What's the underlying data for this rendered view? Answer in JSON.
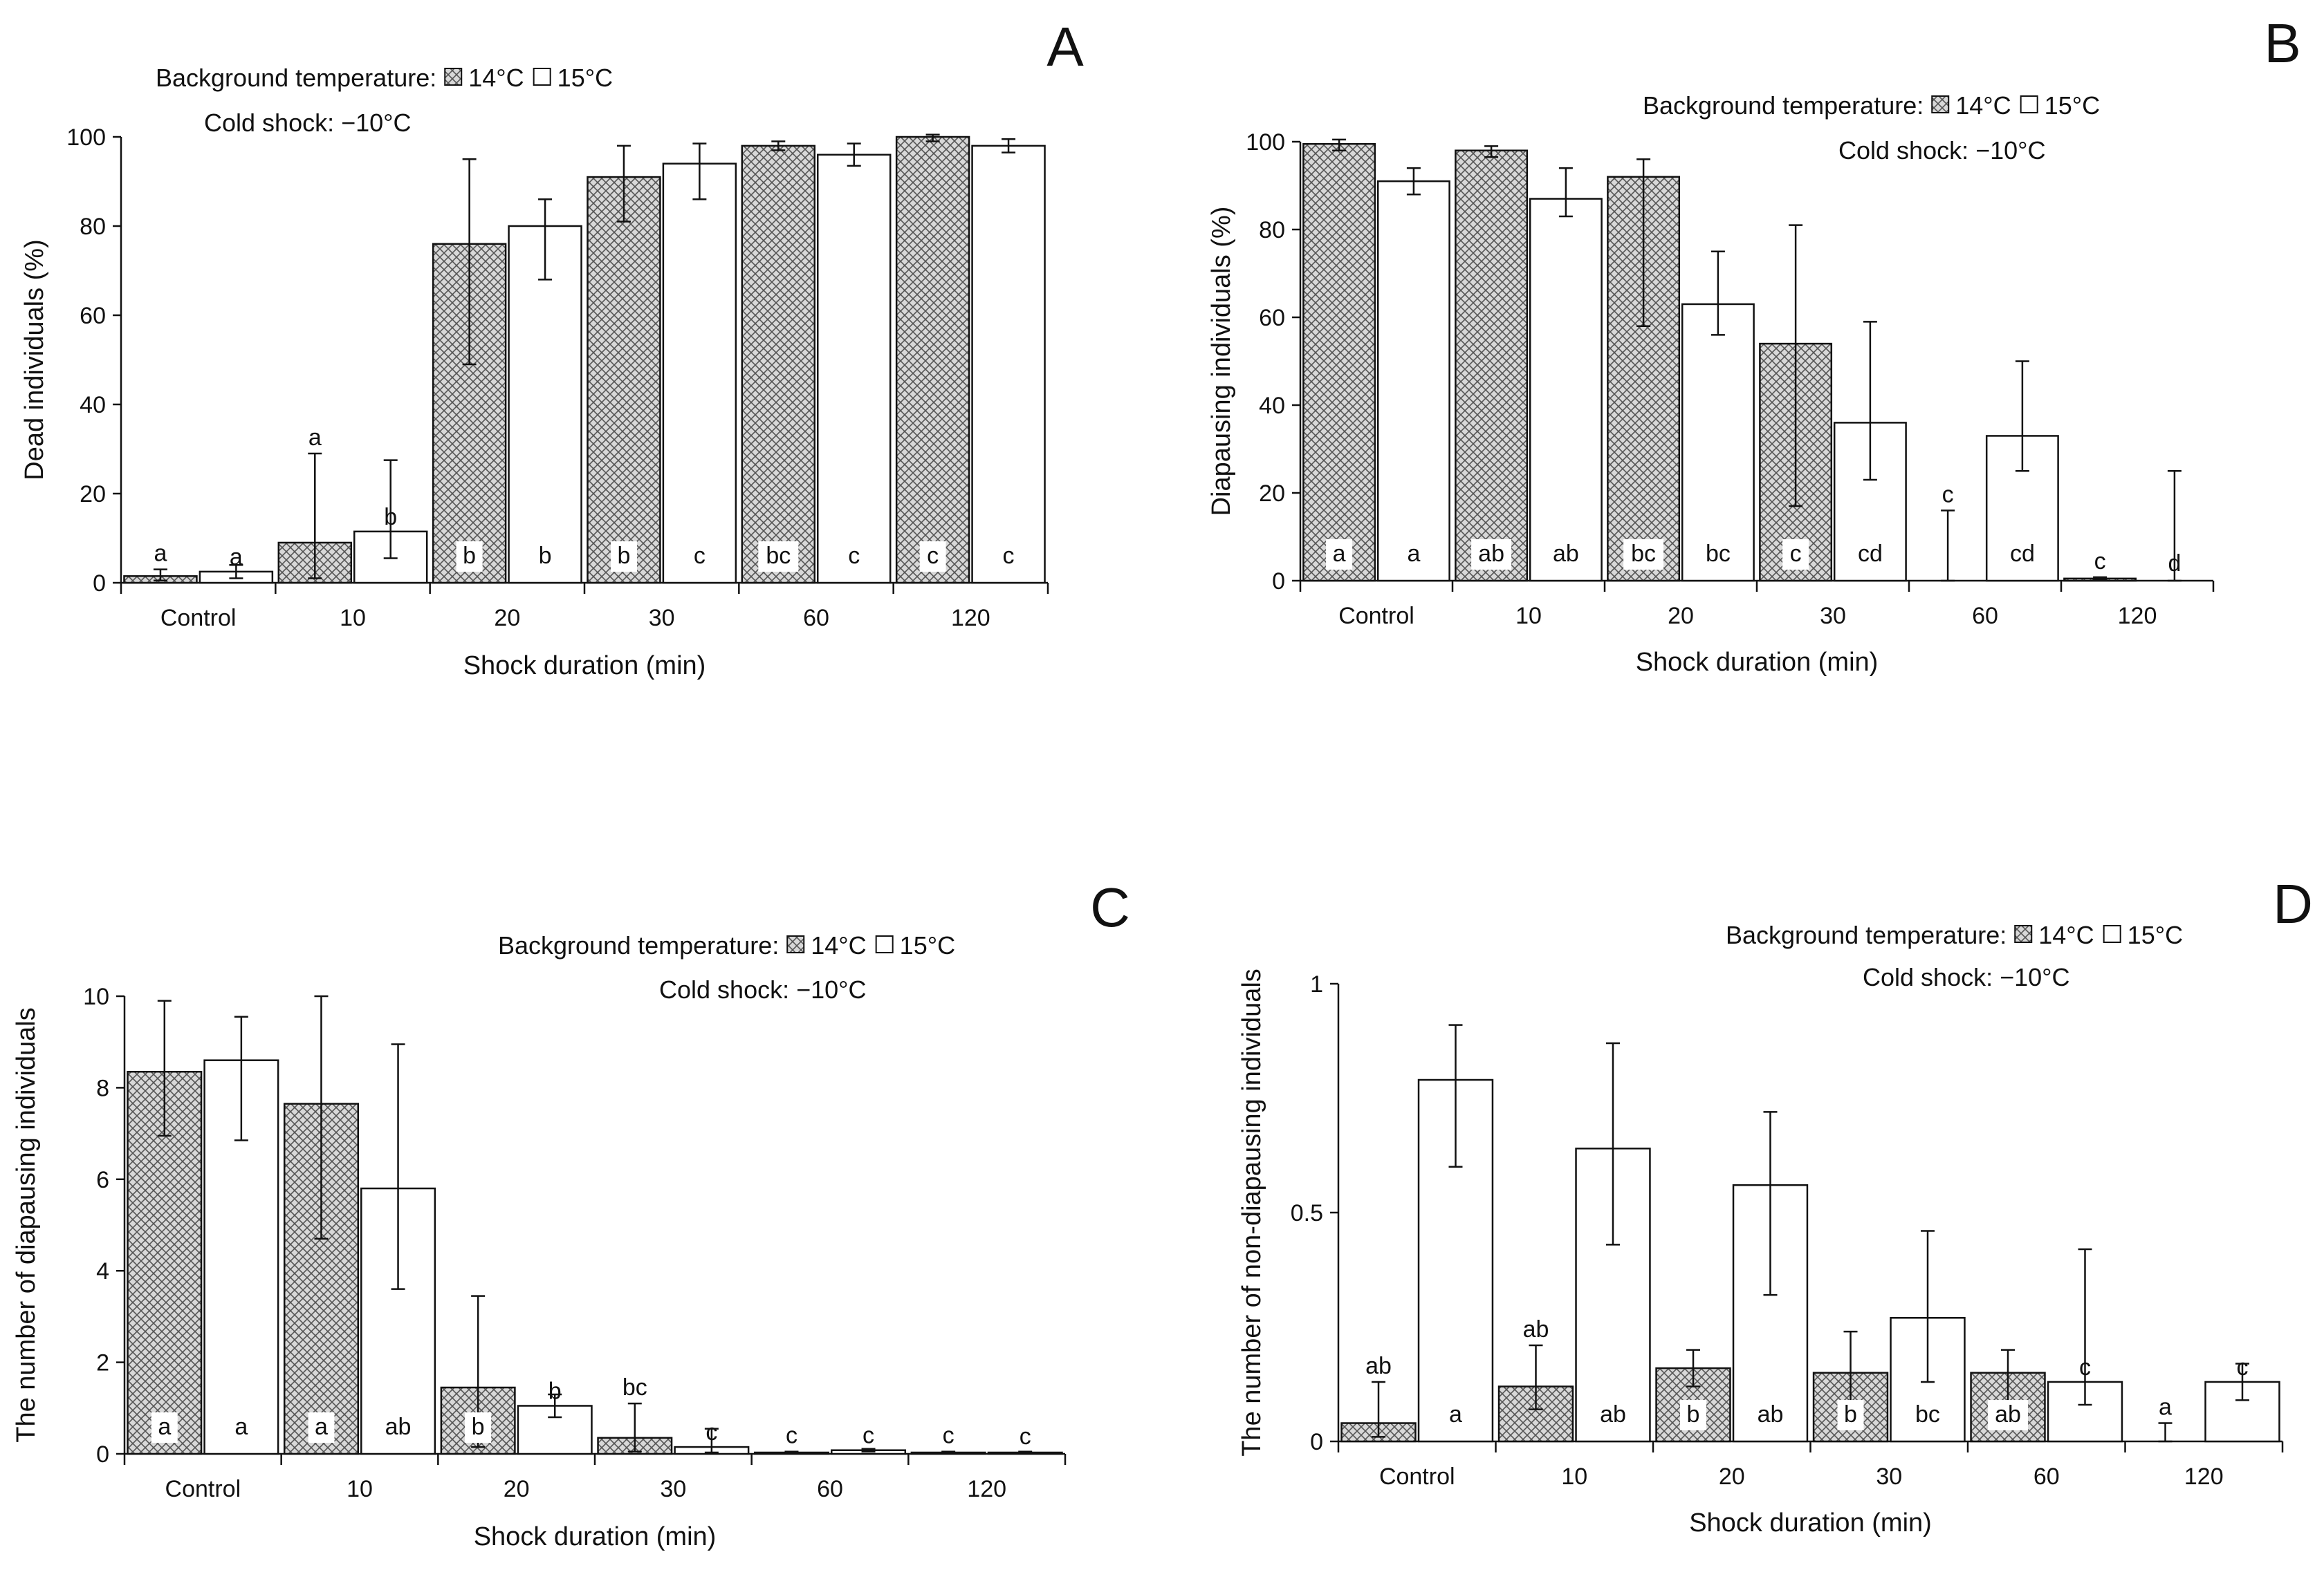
{
  "legend": {
    "background_label": "Background  temperature:",
    "series_14_label": "14°C",
    "series_15_label": "15°C",
    "cold_shock": "Cold shock: −10°C"
  },
  "colors": {
    "bar_edge": "#111111",
    "hatch": "#555555",
    "hatch_bg": "#d8d8d8"
  },
  "chart_data": [
    {
      "panel": "A",
      "type": "bar",
      "categories": [
        "Control",
        "10",
        "20",
        "30",
        "60",
        "120"
      ],
      "xlabel": "Shock duration (min)",
      "ylabel": "Dead  individuals  (%)",
      "ylim": [
        0,
        100
      ],
      "yticks": [
        "0",
        "20",
        "40",
        "60",
        "80",
        "100"
      ],
      "series": [
        {
          "name": "14°C",
          "values": [
            1.5,
            9,
            76,
            91,
            98,
            100
          ],
          "err_low": [
            1,
            8,
            27,
            10,
            1,
            1
          ],
          "err_high": [
            1.5,
            20,
            19,
            7,
            1,
            0.5
          ],
          "letters": [
            "a",
            "a",
            "b",
            "b",
            "bc",
            "c"
          ]
        },
        {
          "name": "15°C",
          "values": [
            2.5,
            11.5,
            80,
            94,
            96,
            98
          ],
          "err_low": [
            1.5,
            6,
            12,
            8,
            2.5,
            1.5
          ],
          "err_high": [
            1.5,
            16,
            6,
            4.5,
            2.5,
            1.5
          ],
          "letters": [
            "a",
            "b",
            "b",
            "c",
            "c",
            "c"
          ]
        }
      ]
    },
    {
      "panel": "B",
      "type": "bar",
      "categories": [
        "Control",
        "10",
        "20",
        "30",
        "60",
        "120"
      ],
      "xlabel": "Shock duration (min)",
      "ylabel": "Diapausing  individuals  (%)",
      "ylim": [
        0,
        100
      ],
      "yticks": [
        "0",
        "20",
        "40",
        "60",
        "80",
        "100"
      ],
      "series": [
        {
          "name": "14°C",
          "values": [
            99.5,
            98,
            92,
            54,
            0,
            0.5
          ],
          "err_low": [
            1.5,
            1.5,
            34,
            37,
            0,
            0.3
          ],
          "err_high": [
            1,
            1,
            4,
            27,
            16,
            0.3
          ],
          "letters": [
            "a",
            "ab",
            "bc",
            "c",
            "c",
            "c"
          ]
        },
        {
          "name": "15°C",
          "values": [
            91,
            87,
            63,
            36,
            33,
            0
          ],
          "err_low": [
            3,
            4,
            7,
            13,
            8,
            0
          ],
          "err_high": [
            3,
            7,
            12,
            23,
            17,
            25
          ],
          "letters": [
            "a",
            "ab",
            "bc",
            "cd",
            "cd",
            "d"
          ]
        }
      ]
    },
    {
      "panel": "C",
      "type": "bar",
      "categories": [
        "Control",
        "10",
        "20",
        "30",
        "60",
        "120"
      ],
      "xlabel": "Shock duration (min)",
      "ylabel": "The number of diapausing individuals",
      "ylim": [
        0,
        10
      ],
      "yticks": [
        "0",
        "2",
        "4",
        "6",
        "8",
        "10"
      ],
      "series": [
        {
          "name": "14°C",
          "values": [
            8.35,
            7.65,
            1.45,
            0.35,
            0.03,
            0.03
          ],
          "err_low": [
            1.4,
            2.95,
            1.3,
            0.3,
            0.02,
            0.02
          ],
          "err_high": [
            1.55,
            2.35,
            2.0,
            0.75,
            0.02,
            0.02
          ],
          "letters": [
            "a",
            "a",
            "b",
            "bc",
            "c",
            "c"
          ]
        },
        {
          "name": "15°C",
          "values": [
            8.6,
            5.8,
            1.05,
            0.15,
            0.08,
            0.03
          ],
          "err_low": [
            1.75,
            2.2,
            0.25,
            0.12,
            0.03,
            0.02
          ],
          "err_high": [
            0.95,
            3.15,
            0.25,
            0.4,
            0.03,
            0.02
          ],
          "letters": [
            "a",
            "ab",
            "b",
            "c",
            "c",
            "c"
          ]
        }
      ]
    },
    {
      "panel": "D",
      "type": "bar",
      "categories": [
        "Control",
        "10",
        "20",
        "30",
        "60",
        "120"
      ],
      "xlabel": "Shock duration (min)",
      "ylabel": "The number of non-diapausing individuals",
      "ylim": [
        0,
        1
      ],
      "yticks": [
        "0",
        "0.5",
        "1"
      ],
      "series": [
        {
          "name": "14°C",
          "values": [
            0.04,
            0.12,
            0.16,
            0.15,
            0.15,
            0
          ],
          "err_low": [
            0.03,
            0.05,
            0.04,
            0.07,
            0.07,
            0
          ],
          "err_high": [
            0.09,
            0.09,
            0.04,
            0.09,
            0.05,
            0.04
          ],
          "letters": [
            "ab",
            "ab",
            "b",
            "b",
            "ab",
            "a"
          ]
        },
        {
          "name": "15°C",
          "values": [
            0.79,
            0.64,
            0.56,
            0.27,
            0.13,
            0.13
          ],
          "err_low": [
            0.19,
            0.21,
            0.24,
            0.14,
            0.05,
            0.04
          ],
          "err_high": [
            0.12,
            0.23,
            0.16,
            0.19,
            0.29,
            0.04
          ],
          "letters": [
            "a",
            "ab",
            "ab",
            "bc",
            "c",
            "c"
          ]
        }
      ]
    }
  ]
}
